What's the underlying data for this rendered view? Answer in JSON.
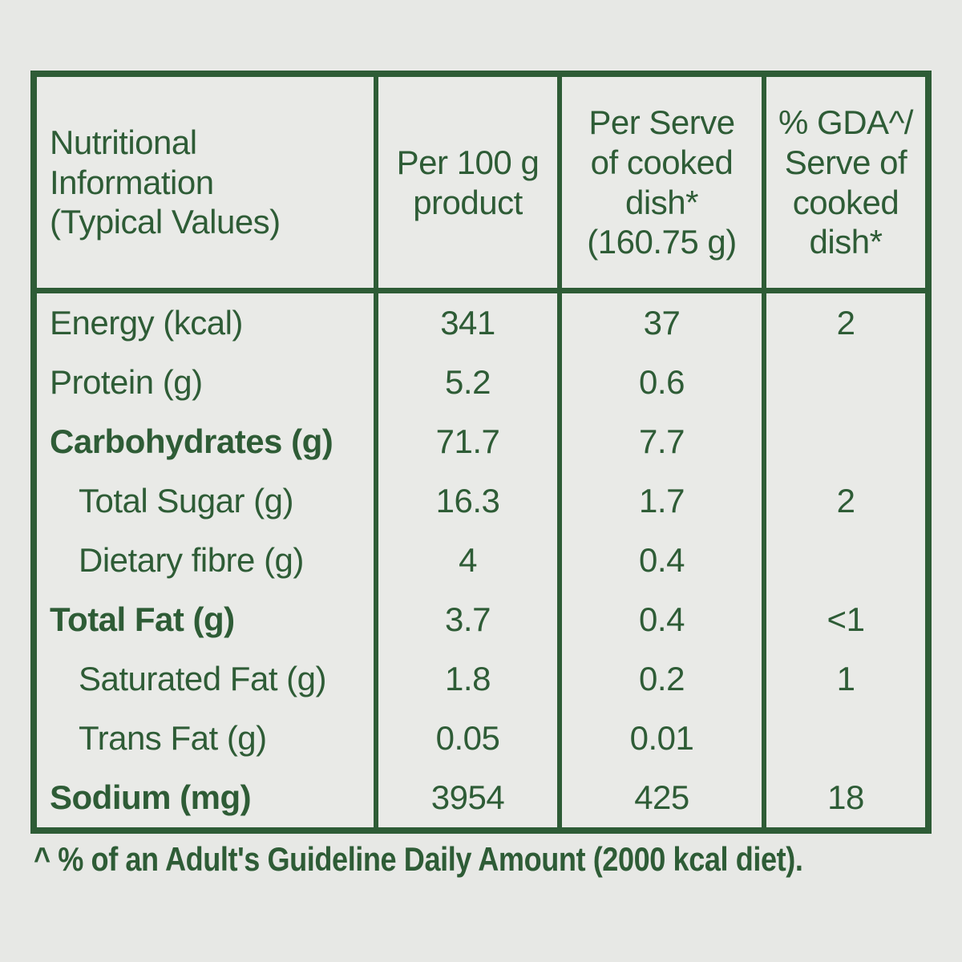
{
  "page": {
    "background_color": "#e7e8e5",
    "accent_green": "#2e5c36"
  },
  "table": {
    "header": {
      "col1": "Nutritional\nInformation\n(Typical Values)",
      "col2": "Per 100 g\nproduct",
      "col3": "Per Serve\nof cooked\ndish*\n(160.75 g)",
      "col4": "% GDA^/\nServe of\ncooked\ndish*"
    },
    "rows": [
      {
        "label": "Energy (kcal)",
        "per_100g": "341",
        "per_serve": "37",
        "gda_percent": "2"
      },
      {
        "label": "Protein (g)",
        "per_100g": "5.2",
        "per_serve": "0.6",
        "gda_percent": ""
      },
      {
        "label": "Carbohydrates (g)",
        "per_100g": "71.7",
        "per_serve": "7.7",
        "gda_percent": ""
      },
      {
        "label": "Total Sugar (g)",
        "per_100g": "16.3",
        "per_serve": "1.7",
        "gda_percent": "2"
      },
      {
        "label": "Dietary fibre (g)",
        "per_100g": "4",
        "per_serve": "0.4",
        "gda_percent": ""
      },
      {
        "label": "Total Fat (g)",
        "per_100g": "3.7",
        "per_serve": "0.4",
        "gda_percent": "<1"
      },
      {
        "label": "Saturated Fat (g)",
        "per_100g": "1.8",
        "per_serve": "0.2",
        "gda_percent": "1"
      },
      {
        "label": "Trans Fat (g)",
        "per_100g": "0.05",
        "per_serve": "0.01",
        "gda_percent": ""
      },
      {
        "label": "Sodium (mg)",
        "per_100g": "3954",
        "per_serve": "425",
        "gda_percent": "18"
      }
    ],
    "footnote": "^ % of an Adult's Guideline Daily Amount (2000 kcal diet)."
  }
}
